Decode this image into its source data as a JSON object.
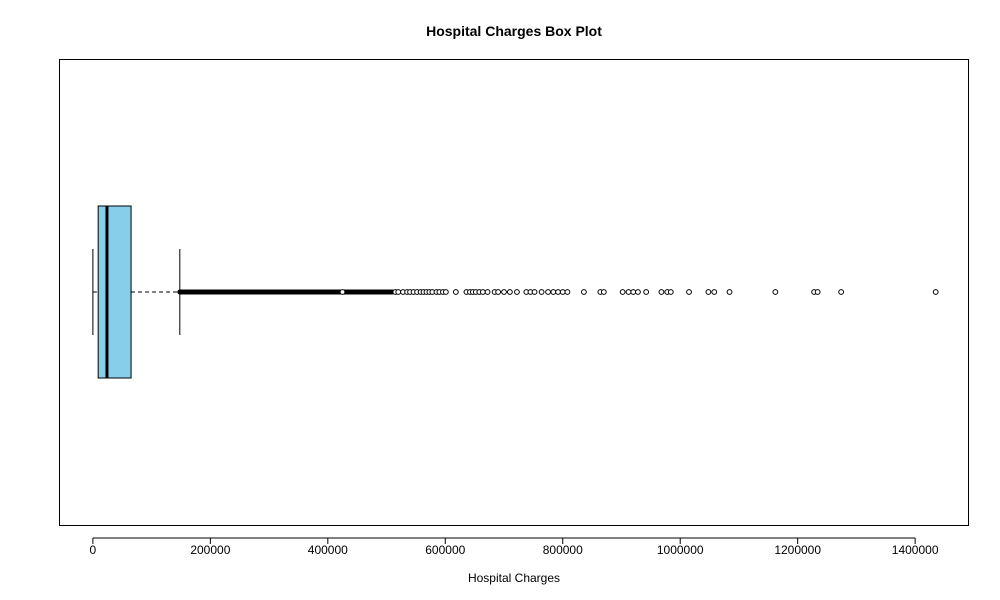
{
  "chart_data": {
    "type": "boxplot",
    "title": "Hospital Charges Box Plot",
    "xlabel": "Hospital Charges",
    "ylabel": "",
    "orientation": "horizontal",
    "xlim": [
      -56000,
      1490000
    ],
    "x_ticks": [
      0,
      200000,
      400000,
      600000,
      800000,
      1000000,
      1200000,
      1400000
    ],
    "x_tick_labels": [
      "0",
      "200000",
      "400000",
      "600000",
      "800000",
      "1000000",
      "1200000",
      "1400000"
    ],
    "grid": false,
    "legend": "none",
    "box": {
      "min": 0,
      "q1": 9000,
      "median": 24000,
      "q3": 65000,
      "whisker_low": 0,
      "whisker_high": 148000,
      "fill_color": "#87CEEB",
      "border_color": "#000000"
    },
    "outliers_dense_range": [
      148000,
      510000
    ],
    "outliers": [
      425000,
      515000,
      520000,
      528000,
      535000,
      540000,
      546000,
      552000,
      558000,
      563000,
      568000,
      573000,
      578000,
      585000,
      590000,
      596000,
      601000,
      618000,
      636000,
      642000,
      647000,
      652000,
      658000,
      664000,
      672000,
      684000,
      690000,
      700000,
      710000,
      722000,
      738000,
      745000,
      752000,
      764000,
      775000,
      784000,
      792000,
      800000,
      808000,
      836000,
      864000,
      870000,
      902000,
      912000,
      920000,
      928000,
      942000,
      968000,
      978000,
      984000,
      1015000,
      1048000,
      1058000,
      1084000,
      1162000,
      1228000,
      1234000,
      1274000,
      1435000
    ]
  }
}
